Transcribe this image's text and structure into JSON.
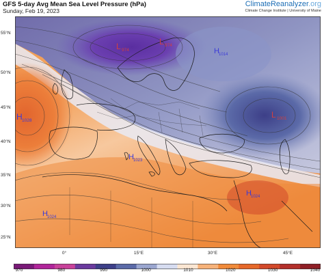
{
  "header": {
    "title": "GFS 5-day Avg Mean Sea Level Pressure (hPa)",
    "date": "Sunday, Feb 19, 2023",
    "brand_main": "ClimateReanalyzer",
    "brand_suffix": ".org",
    "brand_sub": "Climate Change Institute | University of Maine"
  },
  "axes": {
    "lat_labels": [
      "55°N",
      "50°N",
      "45°N",
      "40°N",
      "35°N",
      "30°N",
      "25°N"
    ],
    "lon_labels": [
      "0°",
      "15°E",
      "30°E",
      "45°E"
    ]
  },
  "pressure_centers": [
    {
      "type": "H",
      "value": "1028",
      "color": "#3a3ad8"
    },
    {
      "type": "L",
      "value": "974",
      "color": "#d04040"
    },
    {
      "type": "L",
      "value": "974",
      "color": "#d04040"
    },
    {
      "type": "H",
      "value": "1014",
      "color": "#3a3ad8"
    },
    {
      "type": "L",
      "value": "1001",
      "color": "#d04040"
    },
    {
      "type": "H",
      "value": "1023",
      "color": "#3a3ad8"
    },
    {
      "type": "H",
      "value": "1024",
      "color": "#3a3ad8"
    },
    {
      "type": "H",
      "value": "1024",
      "color": "#3a3ad8"
    }
  ],
  "colorbar": {
    "ticks": [
      "970",
      "980",
      "990",
      "1000",
      "1010",
      "1020",
      "1030",
      "1040"
    ],
    "colors": [
      "#7a1a78",
      "#b0259a",
      "#c8429a",
      "#6a3a9e",
      "#3d3f88",
      "#5b6aa8",
      "#9aa6cf",
      "#d6dcf0",
      "#fbe6d2",
      "#f6b27a",
      "#f08a3a",
      "#e6682a",
      "#d2492a",
      "#b3302b",
      "#8f1f26"
    ]
  }
}
